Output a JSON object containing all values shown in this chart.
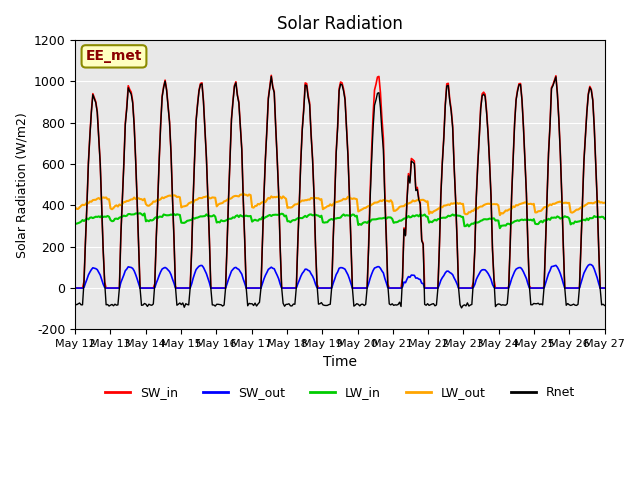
{
  "title": "Solar Radiation",
  "xlabel": "Time",
  "ylabel": "Solar Radiation (W/m2)",
  "ylim": [
    -200,
    1200
  ],
  "yticks": [
    -200,
    0,
    200,
    400,
    600,
    800,
    1000,
    1200
  ],
  "annotation_text": "EE_met",
  "annotation_color": "#8B0000",
  "annotation_bg": "#FFFFC0",
  "bg_color": "#E8E8E8",
  "grid_color": "white",
  "n_days": 15,
  "start_day": 12,
  "end_day": 27,
  "SW_in_peak": 1000,
  "SW_out_peak": 100,
  "LW_in_base": 340,
  "LW_out_base": 400,
  "Rnet_peak": 950,
  "line_colors": {
    "SW_in": "#FF0000",
    "SW_out": "#0000FF",
    "LW_in": "#00CC00",
    "LW_out": "#FFA500",
    "Rnet": "#000000"
  },
  "legend_labels": [
    "SW_in",
    "SW_out",
    "LW_in",
    "LW_out",
    "Rnet"
  ]
}
